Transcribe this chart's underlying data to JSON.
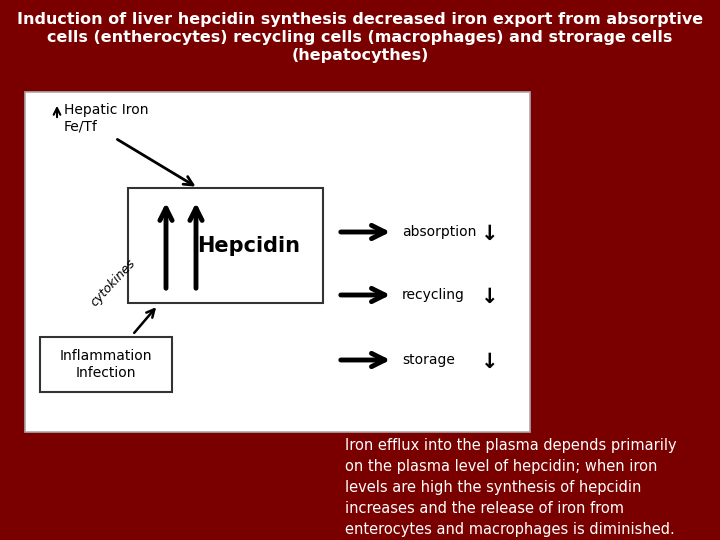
{
  "title_line1": "Induction of liver hepcidin synthesis decreased iron export from absorptive",
  "title_line2": "cells (entherocytes) recycling cells (macrophages) and strorage cells",
  "title_line3": "(hepatocythes)",
  "bg_color": "#7a0000",
  "title_color": "#FFFFFF",
  "diagram_text_hepcidin": "Hepcidin",
  "diagram_text_hepatic": "Hepatic Iron\nFe/Tf",
  "diagram_text_inflammation": "Inflammation\nInfection",
  "diagram_text_cytokines": "cytokines",
  "diagram_label_absorption": "absorption",
  "diagram_label_recycling": "recycling",
  "diagram_label_storage": "storage",
  "caption": "Iron efflux into the plasma depends primarily\non the plasma level of hepcidin; when iron\nlevels are high the synthesis of hepcidin\nincreases and the release of iron from\nenterocytes and macrophages is diminished.",
  "caption_color": "#FFFFFF",
  "title_fontsize": 11.5,
  "caption_fontsize": 10.5,
  "diagram_fontsize": 10,
  "hepcidin_fontsize": 15
}
